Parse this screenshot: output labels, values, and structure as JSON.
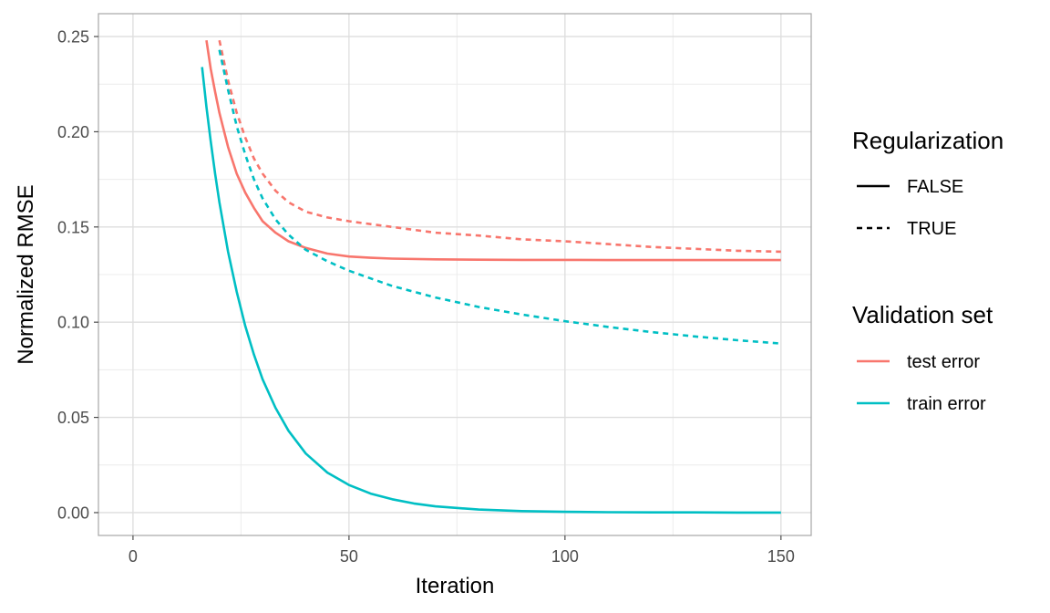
{
  "chart_data": {
    "type": "line",
    "title": "",
    "xlabel": "Iteration",
    "ylabel": "Normalized RMSE",
    "xlim": [
      -8,
      157
    ],
    "ylim": [
      -0.012,
      0.262
    ],
    "x_ticks": [
      0,
      50,
      100,
      150
    ],
    "x_tick_labels": [
      "0",
      "50",
      "100",
      "150"
    ],
    "y_ticks": [
      0.0,
      0.05,
      0.1,
      0.15,
      0.2,
      0.25
    ],
    "y_tick_labels": [
      "0.00",
      "0.05",
      "0.10",
      "0.15",
      "0.20",
      "0.25"
    ],
    "grid": true,
    "legend_position": "right",
    "legends": [
      {
        "title": "Regularization",
        "entries": [
          {
            "label": "FALSE",
            "linetype": "solid"
          },
          {
            "label": "TRUE",
            "linetype": "dashed"
          }
        ]
      },
      {
        "title": "Validation set",
        "entries": [
          {
            "label": "test error",
            "color": "#F8766D"
          },
          {
            "label": "train error",
            "color": "#00BFC4"
          }
        ]
      }
    ],
    "series": [
      {
        "regularization": "FALSE",
        "validation_set": "test error",
        "color": "#F8766D",
        "linetype": "solid",
        "x": [
          17,
          18,
          19,
          20,
          22,
          24,
          26,
          28,
          30,
          33,
          36,
          40,
          45,
          50,
          55,
          60,
          70,
          80,
          90,
          100,
          110,
          120,
          130,
          140,
          150
        ],
        "y": [
          0.248,
          0.233,
          0.221,
          0.21,
          0.192,
          0.178,
          0.168,
          0.16,
          0.153,
          0.147,
          0.1425,
          0.139,
          0.136,
          0.1345,
          0.1338,
          0.1334,
          0.133,
          0.1328,
          0.1327,
          0.1327,
          0.1326,
          0.1326,
          0.1326,
          0.1326,
          0.1326
        ]
      },
      {
        "regularization": "TRUE",
        "validation_set": "test error",
        "color": "#F8766D",
        "linetype": "dashed",
        "x": [
          20,
          22,
          24,
          26,
          28,
          30,
          33,
          36,
          40,
          45,
          50,
          55,
          60,
          70,
          80,
          90,
          100,
          110,
          120,
          130,
          140,
          150
        ],
        "y": [
          0.248,
          0.227,
          0.21,
          0.197,
          0.186,
          0.178,
          0.169,
          0.163,
          0.158,
          0.155,
          0.153,
          0.1515,
          0.15,
          0.147,
          0.1455,
          0.1435,
          0.1425,
          0.141,
          0.1395,
          0.1385,
          0.1375,
          0.137
        ]
      },
      {
        "regularization": "FALSE",
        "validation_set": "train error",
        "color": "#00BFC4",
        "linetype": "solid",
        "x": [
          16,
          17,
          18,
          19,
          20,
          22,
          24,
          26,
          28,
          30,
          33,
          36,
          40,
          45,
          50,
          55,
          60,
          65,
          70,
          80,
          90,
          100,
          110,
          120,
          130,
          140,
          150
        ],
        "y": [
          0.234,
          0.213,
          0.195,
          0.178,
          0.163,
          0.137,
          0.116,
          0.098,
          0.083,
          0.07,
          0.055,
          0.043,
          0.031,
          0.021,
          0.0145,
          0.01,
          0.007,
          0.0048,
          0.0033,
          0.0016,
          0.0008,
          0.0004,
          0.0002,
          0.0001,
          0.0001,
          0.0,
          0.0
        ]
      },
      {
        "regularization": "TRUE",
        "validation_set": "train error",
        "color": "#00BFC4",
        "linetype": "dashed",
        "x": [
          20,
          22,
          24,
          26,
          28,
          30,
          33,
          36,
          40,
          45,
          50,
          55,
          60,
          70,
          80,
          90,
          100,
          110,
          120,
          130,
          140,
          150
        ],
        "y": [
          0.243,
          0.222,
          0.203,
          0.188,
          0.175,
          0.165,
          0.154,
          0.146,
          0.138,
          0.132,
          0.127,
          0.123,
          0.119,
          0.113,
          0.108,
          0.104,
          0.1005,
          0.0975,
          0.0948,
          0.0925,
          0.0905,
          0.0888
        ]
      }
    ]
  }
}
